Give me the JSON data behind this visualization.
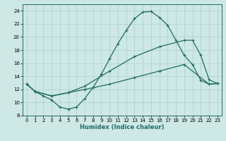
{
  "xlabel": "Humidex (Indice chaleur)",
  "xlim": [
    -0.5,
    23.5
  ],
  "ylim": [
    8,
    25
  ],
  "yticks": [
    8,
    10,
    12,
    14,
    16,
    18,
    20,
    22,
    24
  ],
  "xticks": [
    0,
    1,
    2,
    3,
    4,
    5,
    6,
    7,
    8,
    9,
    10,
    11,
    12,
    13,
    14,
    15,
    16,
    17,
    18,
    19,
    20,
    21,
    22,
    23
  ],
  "bg_color": "#cde8e5",
  "grid_color": "#b0d4d0",
  "line_color": "#1f6b63",
  "line1_x": [
    0,
    1,
    2,
    3,
    4,
    5,
    6,
    7,
    8,
    9,
    10,
    11,
    12,
    13,
    14,
    15,
    16,
    17,
    18,
    19,
    20,
    21,
    22,
    23
  ],
  "line1_y": [
    12.8,
    11.7,
    11.0,
    10.4,
    9.3,
    9.0,
    9.3,
    10.6,
    12.3,
    14.3,
    16.7,
    19.0,
    21.0,
    22.8,
    23.8,
    23.9,
    23.0,
    21.8,
    19.5,
    17.2,
    15.8,
    13.4,
    12.8,
    12.9
  ],
  "line2_x": [
    0,
    1,
    3,
    5,
    7,
    10,
    13,
    16,
    19,
    20,
    21,
    22,
    23
  ],
  "line2_y": [
    12.8,
    11.7,
    11.0,
    11.5,
    12.5,
    14.8,
    17.0,
    18.5,
    19.5,
    19.5,
    17.2,
    13.5,
    12.9
  ],
  "line3_x": [
    0,
    1,
    3,
    5,
    7,
    10,
    13,
    16,
    19,
    22,
    23
  ],
  "line3_y": [
    12.8,
    11.7,
    11.0,
    11.5,
    12.0,
    12.8,
    13.8,
    14.8,
    15.8,
    12.8,
    12.9
  ]
}
